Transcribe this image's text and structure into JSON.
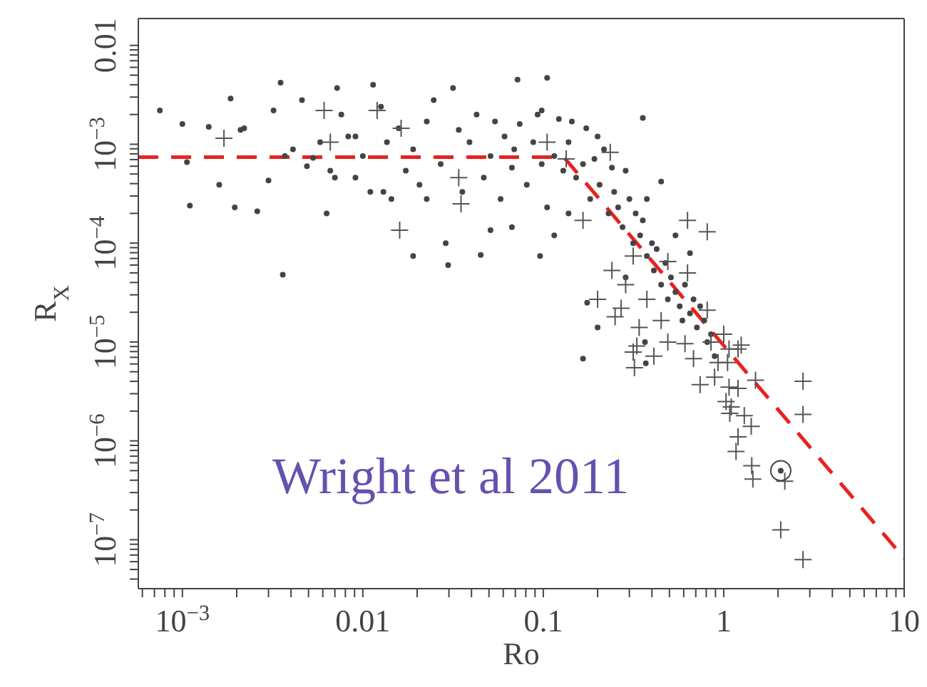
{
  "chart_data": {
    "type": "scatter",
    "xlabel": "Ro",
    "ylabel": "R$_{X}$",
    "log": "xy",
    "xlim": [
      0.00057,
      10
    ],
    "ylim": [
      3.2e-08,
      0.0187
    ],
    "xticks": [
      {
        "value": 0.0006,
        "label": null
      },
      {
        "value": 0.0007,
        "label": null
      },
      {
        "value": 0.0008,
        "label": null
      },
      {
        "value": 0.0009,
        "label": null
      },
      {
        "value": 0.001,
        "label": "10$^{−3}$"
      },
      {
        "value": 0.002,
        "label": null
      },
      {
        "value": 0.003,
        "label": null
      },
      {
        "value": 0.004,
        "label": null
      },
      {
        "value": 0.005,
        "label": null
      },
      {
        "value": 0.006,
        "label": null
      },
      {
        "value": 0.007,
        "label": null
      },
      {
        "value": 0.008,
        "label": null
      },
      {
        "value": 0.009,
        "label": null
      },
      0.01,
      {
        "value": 0.02,
        "label": null
      },
      {
        "value": 0.03,
        "label": null
      },
      {
        "value": 0.04,
        "label": null
      },
      {
        "value": 0.05,
        "label": null
      },
      {
        "value": 0.06,
        "label": null
      },
      {
        "value": 0.07,
        "label": null
      },
      {
        "value": 0.08,
        "label": null
      },
      {
        "value": 0.09,
        "label": null
      },
      0.1,
      {
        "value": 0.2,
        "label": null
      },
      {
        "value": 0.3,
        "label": null
      },
      {
        "value": 0.4,
        "label": null
      },
      {
        "value": 0.5,
        "label": null
      },
      {
        "value": 0.6,
        "label": null
      },
      {
        "value": 0.7,
        "label": null
      },
      {
        "value": 0.8,
        "label": null
      },
      {
        "value": 0.9,
        "label": null
      },
      1,
      {
        "value": 2,
        "label": null
      },
      {
        "value": 3,
        "label": null
      },
      {
        "value": 4,
        "label": null
      },
      {
        "value": 5,
        "label": null
      },
      {
        "value": 6,
        "label": null
      },
      {
        "value": 7,
        "label": null
      },
      {
        "value": 8,
        "label": null
      },
      {
        "value": 9,
        "label": null
      },
      10
    ],
    "yticks": [
      {
        "value": 4e-08,
        "label": null
      },
      {
        "value": 5e-08,
        "label": null
      },
      {
        "value": 6e-08,
        "label": null
      },
      {
        "value": 7e-08,
        "label": null
      },
      {
        "value": 8e-08,
        "label": null
      },
      {
        "value": 9e-08,
        "label": null
      },
      {
        "value": 1e-07,
        "label": "10$^{−7}$"
      },
      {
        "value": 2e-07,
        "label": null
      },
      {
        "value": 3e-07,
        "label": null
      },
      {
        "value": 4e-07,
        "label": null
      },
      {
        "value": 5e-07,
        "label": null
      },
      {
        "value": 6e-07,
        "label": null
      },
      {
        "value": 7e-07,
        "label": null
      },
      {
        "value": 8e-07,
        "label": null
      },
      {
        "value": 9e-07,
        "label": null
      },
      {
        "value": 1e-06,
        "label": "10$^{−6}$"
      },
      {
        "value": 2e-06,
        "label": null
      },
      {
        "value": 3e-06,
        "label": null
      },
      {
        "value": 4e-06,
        "label": null
      },
      {
        "value": 5e-06,
        "label": null
      },
      {
        "value": 6e-06,
        "label": null
      },
      {
        "value": 7e-06,
        "label": null
      },
      {
        "value": 8e-06,
        "label": null
      },
      {
        "value": 9e-06,
        "label": null
      },
      {
        "value": 1e-05,
        "label": "10$^{−5}$"
      },
      {
        "value": 2e-05,
        "label": null
      },
      {
        "value": 3e-05,
        "label": null
      },
      {
        "value": 4e-05,
        "label": null
      },
      {
        "value": 5e-05,
        "label": null
      },
      {
        "value": 6e-05,
        "label": null
      },
      {
        "value": 7e-05,
        "label": null
      },
      {
        "value": 8e-05,
        "label": null
      },
      {
        "value": 9e-05,
        "label": null
      },
      {
        "value": 0.0001,
        "label": "10$^{−4}$"
      },
      {
        "value": 0.0002,
        "label": null
      },
      {
        "value": 0.0003,
        "label": null
      },
      {
        "value": 0.0004,
        "label": null
      },
      {
        "value": 0.0005,
        "label": null
      },
      {
        "value": 0.0006,
        "label": null
      },
      {
        "value": 0.0007,
        "label": null
      },
      {
        "value": 0.0008,
        "label": null
      },
      {
        "value": 0.0009,
        "label": null
      },
      {
        "value": 0.001,
        "label": "10$^{−3}$"
      },
      {
        "value": 0.002,
        "label": null
      },
      {
        "value": 0.003,
        "label": null
      },
      {
        "value": 0.004,
        "label": null
      },
      {
        "value": 0.005,
        "label": null
      },
      {
        "value": 0.006,
        "label": null
      },
      {
        "value": 0.007,
        "label": null
      },
      {
        "value": 0.008,
        "label": null
      },
      {
        "value": 0.009,
        "label": null
      },
      0.01
    ],
    "annotations": [
      "Wright et al 2011"
    ],
    "series": [
      {
        "marker": "circle",
        "color": "#444444",
        "x": [
          0.00075,
          0.001,
          0.00106,
          0.0011,
          0.0014,
          0.0016,
          0.00185,
          0.00195,
          0.0021,
          0.0022,
          0.0026,
          0.003,
          0.0032,
          0.0035,
          0.0036,
          0.0037,
          0.0041,
          0.0046,
          0.0049,
          0.0053,
          0.0058,
          0.0063,
          0.0066,
          0.0072,
          0.0076,
          0.0083,
          0.0091,
          0.01,
          0.011,
          0.0114,
          0.0126,
          0.0136,
          0.0144,
          0.0158,
          0.0173,
          0.019,
          0.019,
          0.0206,
          0.0226,
          0.0247,
          0.027,
          0.0288,
          0.0297,
          0.0316,
          0.034,
          0.0356,
          0.039,
          0.0427,
          0.0468,
          0.051,
          0.054,
          0.058,
          0.061,
          0.067,
          0.069,
          0.074,
          0.081,
          0.088,
          0.093,
          0.098,
          0.105,
          0.105,
          0.115,
          0.122,
          0.129,
          0.138,
          0.144,
          0.152,
          0.166,
          0.173,
          0.182,
          0.192,
          0.2,
          0.205,
          0.217,
          0.23,
          0.24,
          0.247,
          0.26,
          0.275,
          0.286,
          0.3,
          0.315,
          0.325,
          0.344,
          0.356,
          0.375,
          0.4,
          0.41,
          0.425,
          0.45,
          0.475,
          0.49,
          0.51,
          0.54,
          0.57,
          0.59,
          0.61,
          0.65,
          0.68,
          0.71,
          0.74,
          0.78,
          0.81,
          0.85,
          0.89,
          0.2,
          0.286,
          0.375,
          0.45,
          0.54,
          0.65,
          0.115,
          0.138,
          0.096,
          0.067,
          0.051,
          0.072,
          0.098,
          0.356,
          0.0226,
          0.013,
          0.0091,
          0.007,
          0.166,
          0.366,
          0.37,
          0.175,
          0.045
        ],
        "values": [
          0.0022,
          0.0016,
          0.00066,
          0.00024,
          0.0015,
          0.00039,
          0.0029,
          0.00023,
          0.0014,
          0.00145,
          0.00021,
          0.00043,
          0.0022,
          0.0042,
          4.8e-05,
          0.00076,
          0.00089,
          0.0028,
          0.0006,
          0.00073,
          0.00105,
          0.0002,
          0.00054,
          0.0037,
          0.002,
          0.0012,
          0.00046,
          0.00076,
          0.00033,
          0.004,
          0.0024,
          0.00105,
          0.00028,
          0.00145,
          0.00054,
          0.00089,
          7.4e-05,
          0.00039,
          0.0017,
          0.0028,
          0.00063,
          0.0001,
          6e-05,
          0.0037,
          0.0014,
          0.00033,
          0.00105,
          0.002,
          0.00046,
          0.00076,
          0.0017,
          0.00028,
          0.0012,
          0.00058,
          0.00089,
          0.0016,
          0.00039,
          0.00105,
          0.002,
          0.00063,
          0.00023,
          0.0047,
          0.00076,
          0.0018,
          0.00054,
          0.00105,
          0.0017,
          0.00046,
          0.00063,
          0.00145,
          0.00028,
          0.00071,
          0.0012,
          0.00039,
          0.00089,
          0.0002,
          0.00058,
          0.00033,
          0.00023,
          0.000145,
          0.00054,
          0.00028,
          0.0001,
          0.0002,
          0.00012,
          0.00017,
          7.4e-05,
          0.0001,
          5.3e-05,
          8.7e-05,
          3.8e-05,
          6.3e-05,
          2.7e-05,
          4.5e-05,
          3.2e-05,
          2.3e-05,
          1.65e-05,
          3.8e-05,
          1.95e-05,
          2.7e-05,
          1.4e-05,
          2.3e-05,
          1.65e-05,
          1e-05,
          1.2e-05,
          7.2e-06,
          1.4e-05,
          4.5e-05,
          0.00028,
          0.00042,
          0.00012,
          7.9e-05,
          0.00012,
          0.0002,
          7.4e-05,
          0.000145,
          0.000135,
          0.0045,
          0.0022,
          0.00185,
          0.00028,
          0.00033,
          0.0012,
          0.00046,
          6.8e-06,
          1e-05,
          6.1e-06,
          2.5e-05,
          7.6e-05
        ]
      },
      {
        "marker": "cross",
        "color": "#555555",
        "x": [
          0.0017,
          0.0061,
          0.0066,
          0.012,
          0.0163,
          0.016,
          0.034,
          0.035,
          0.134,
          0.235,
          0.105,
          0.63,
          0.81,
          0.166,
          0.2,
          0.24,
          0.286,
          0.315,
          0.375,
          0.25,
          0.49,
          0.63,
          0.81,
          0.85,
          1.0,
          1.07,
          0.93,
          1.05,
          1.2,
          1.25,
          0.33,
          0.27,
          0.49,
          0.61,
          0.34,
          0.41,
          0.45,
          0.68,
          0.74,
          0.89,
          1.07,
          1.03,
          1.08,
          1.1,
          1.2,
          1.3,
          1.42,
          1.5,
          2.75,
          2.75,
          1.2,
          1.17,
          1.43,
          1.45,
          2.18,
          2.07,
          2.75,
          0.32,
          0.315
        ],
        "values": [
          0.00115,
          0.0022,
          0.00105,
          0.0022,
          0.00145,
          0.000135,
          0.00046,
          0.00025,
          0.00071,
          0.00083,
          0.00105,
          0.00017,
          0.00013,
          0.00017,
          2.7e-05,
          5.3e-05,
          3.8e-05,
          7.4e-05,
          2.7e-05,
          1.8e-05,
          6.5e-05,
          5e-05,
          2.1e-05,
          1e-05,
          1.2e-05,
          8.5e-06,
          6.2e-06,
          6.2e-06,
          8.5e-06,
          9.3e-06,
          9.1e-06,
          2.2e-05,
          1e-05,
          9.6e-06,
          1.4e-05,
          7.2e-06,
          1.65e-05,
          6.8e-06,
          3.7e-06,
          4.4e-06,
          3.5e-06,
          2.5e-06,
          1.9e-06,
          2.2e-06,
          3.4e-06,
          1.8e-06,
          1.4e-06,
          4.1e-06,
          4e-06,
          1.85e-06,
          1.1e-06,
          7.8e-07,
          5.6e-07,
          4.1e-07,
          3.9e-07,
          1.26e-07,
          6.3e-08,
          5.5e-06,
          7.9e-06
        ]
      },
      {
        "marker": "circle",
        "color": "#444444",
        "x": [
          2.07
        ],
        "values": [
          5e-07
        ]
      },
      {
        "type": "line",
        "marker": "none",
        "line_style": "dashed",
        "color": "#e8211f",
        "x": [
          0.00057,
          0.13,
          10
        ],
        "values": [
          0.00074,
          0.00074,
          6.5e-08
        ]
      }
    ]
  }
}
